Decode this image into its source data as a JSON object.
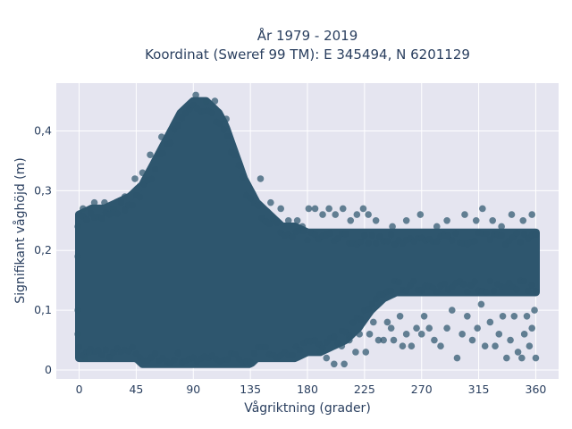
{
  "chart_data": {
    "type": "scatter",
    "title": "År 1979 - 2019",
    "subtitle": "Koordinat (Sweref 99 TM): E 345494, N 6201129",
    "xlabel": "Vågriktning (grader)",
    "ylabel": "Signifikant våghöjd (m)",
    "xlim": [
      -18,
      378
    ],
    "ylim": [
      -0.015,
      0.48
    ],
    "x_ticks": [
      0,
      45,
      90,
      135,
      180,
      225,
      270,
      315,
      360
    ],
    "x_tick_labels": [
      "0",
      "45",
      "90",
      "135",
      "180",
      "225",
      "270",
      "315",
      "360"
    ],
    "y_ticks": [
      0,
      0.1,
      0.2,
      0.3,
      0.4
    ],
    "y_tick_labels": [
      "0",
      "0,1",
      "0,2",
      "0,3",
      "0,4"
    ],
    "grid": true,
    "marker_color": "#2e566e",
    "background_color": "#e5e5f0",
    "envelope": {
      "x": [
        0,
        10,
        20,
        30,
        40,
        45,
        50,
        55,
        60,
        65,
        70,
        75,
        80,
        85,
        90,
        95,
        100,
        105,
        110,
        115,
        120,
        125,
        130,
        135,
        140,
        145,
        150,
        155,
        160,
        170,
        180,
        190,
        200,
        210,
        220,
        230,
        240,
        250,
        260,
        270,
        280,
        290,
        300,
        310,
        320,
        330,
        340,
        350,
        360
      ],
      "ymin": [
        0.02,
        0.02,
        0.02,
        0.02,
        0.02,
        0.02,
        0.01,
        0.01,
        0.01,
        0.01,
        0.01,
        0.01,
        0.01,
        0.01,
        0.01,
        0.01,
        0.01,
        0.01,
        0.01,
        0.01,
        0.01,
        0.01,
        0.01,
        0.01,
        0.02,
        0.02,
        0.02,
        0.02,
        0.02,
        0.02,
        0.03,
        0.03,
        0.04,
        0.05,
        0.07,
        0.1,
        0.12,
        0.13,
        0.13,
        0.13,
        0.13,
        0.13,
        0.13,
        0.13,
        0.13,
        0.13,
        0.13,
        0.13,
        0.13
      ],
      "ymax": [
        0.26,
        0.27,
        0.27,
        0.28,
        0.29,
        0.3,
        0.31,
        0.33,
        0.35,
        0.37,
        0.39,
        0.41,
        0.43,
        0.44,
        0.45,
        0.45,
        0.45,
        0.44,
        0.43,
        0.41,
        0.38,
        0.35,
        0.32,
        0.3,
        0.28,
        0.27,
        0.26,
        0.25,
        0.24,
        0.24,
        0.23,
        0.23,
        0.23,
        0.23,
        0.23,
        0.23,
        0.23,
        0.23,
        0.23,
        0.23,
        0.23,
        0.23,
        0.23,
        0.23,
        0.23,
        0.23,
        0.23,
        0.23,
        0.23
      ]
    },
    "outliers": [
      [
        -1,
        0.24
      ],
      [
        -1,
        0.19
      ],
      [
        -1,
        0.1
      ],
      [
        -1,
        0.06
      ],
      [
        3,
        0.27
      ],
      [
        5,
        0.02
      ],
      [
        8,
        0.03
      ],
      [
        12,
        0.28
      ],
      [
        20,
        0.28
      ],
      [
        27,
        0.27
      ],
      [
        36,
        0.29
      ],
      [
        44,
        0.32
      ],
      [
        50,
        0.33
      ],
      [
        56,
        0.36
      ],
      [
        65,
        0.39
      ],
      [
        92,
        0.46
      ],
      [
        100,
        0.45
      ],
      [
        107,
        0.45
      ],
      [
        116,
        0.42
      ],
      [
        143,
        0.32
      ],
      [
        151,
        0.28
      ],
      [
        159,
        0.27
      ],
      [
        165,
        0.25
      ],
      [
        172,
        0.25
      ],
      [
        176,
        0.24
      ],
      [
        181,
        0.27
      ],
      [
        186,
        0.27
      ],
      [
        192,
        0.26
      ],
      [
        197,
        0.27
      ],
      [
        202,
        0.26
      ],
      [
        208,
        0.27
      ],
      [
        214,
        0.25
      ],
      [
        219,
        0.26
      ],
      [
        224,
        0.27
      ],
      [
        228,
        0.26
      ],
      [
        234,
        0.25
      ],
      [
        247,
        0.24
      ],
      [
        258,
        0.25
      ],
      [
        269,
        0.26
      ],
      [
        282,
        0.24
      ],
      [
        290,
        0.25
      ],
      [
        304,
        0.26
      ],
      [
        313,
        0.25
      ],
      [
        318,
        0.27
      ],
      [
        326,
        0.25
      ],
      [
        333,
        0.24
      ],
      [
        341,
        0.26
      ],
      [
        350,
        0.25
      ],
      [
        357,
        0.26
      ],
      [
        190,
        0.03
      ],
      [
        195,
        0.02
      ],
      [
        201,
        0.01
      ],
      [
        207,
        0.04
      ],
      [
        209,
        0.01
      ],
      [
        213,
        0.05
      ],
      [
        218,
        0.03
      ],
      [
        221,
        0.06
      ],
      [
        226,
        0.03
      ],
      [
        229,
        0.06
      ],
      [
        232,
        0.08
      ],
      [
        236,
        0.05
      ],
      [
        240,
        0.05
      ],
      [
        243,
        0.08
      ],
      [
        246,
        0.07
      ],
      [
        248,
        0.05
      ],
      [
        253,
        0.09
      ],
      [
        255,
        0.04
      ],
      [
        258,
        0.06
      ],
      [
        262,
        0.04
      ],
      [
        266,
        0.07
      ],
      [
        270,
        0.06
      ],
      [
        272,
        0.09
      ],
      [
        276,
        0.07
      ],
      [
        280,
        0.05
      ],
      [
        285,
        0.04
      ],
      [
        290,
        0.07
      ],
      [
        294,
        0.1
      ],
      [
        298,
        0.02
      ],
      [
        302,
        0.06
      ],
      [
        306,
        0.09
      ],
      [
        310,
        0.05
      ],
      [
        314,
        0.07
      ],
      [
        317,
        0.11
      ],
      [
        320,
        0.04
      ],
      [
        324,
        0.08
      ],
      [
        328,
        0.04
      ],
      [
        331,
        0.06
      ],
      [
        334,
        0.09
      ],
      [
        337,
        0.02
      ],
      [
        340,
        0.05
      ],
      [
        343,
        0.09
      ],
      [
        346,
        0.03
      ],
      [
        349,
        0.02
      ],
      [
        351,
        0.06
      ],
      [
        353,
        0.09
      ],
      [
        355,
        0.04
      ],
      [
        357,
        0.07
      ],
      [
        359,
        0.1
      ],
      [
        360,
        0.02
      ]
    ]
  }
}
